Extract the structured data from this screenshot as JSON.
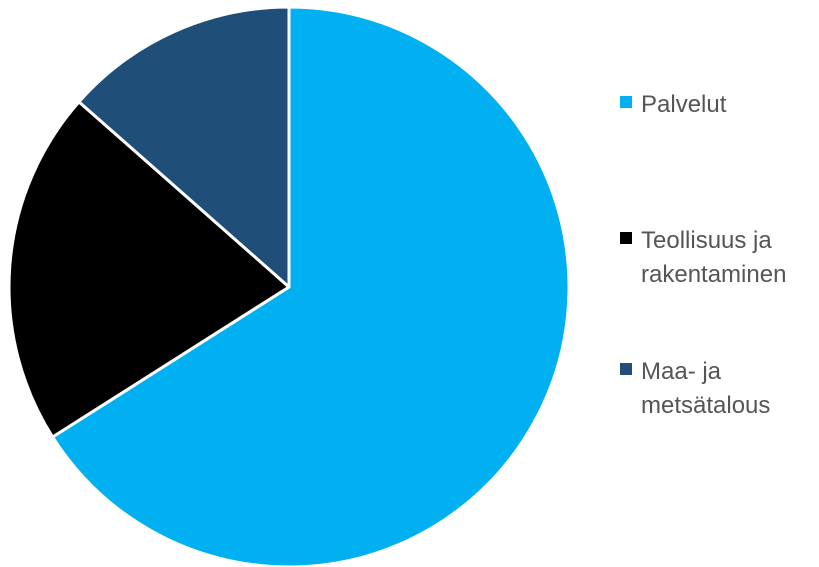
{
  "chart_data": {
    "type": "pie",
    "title": "",
    "slices": [
      {
        "label": "Palvelut",
        "value": 66,
        "color": "#00B0F0"
      },
      {
        "label": "Teollisuus ja rakentaminen",
        "value": 20.5,
        "color": "#000000"
      },
      {
        "label": "Maa- ja metsätalous",
        "value": 13.5,
        "color": "#1F4E79"
      }
    ],
    "legend_position": "right"
  }
}
